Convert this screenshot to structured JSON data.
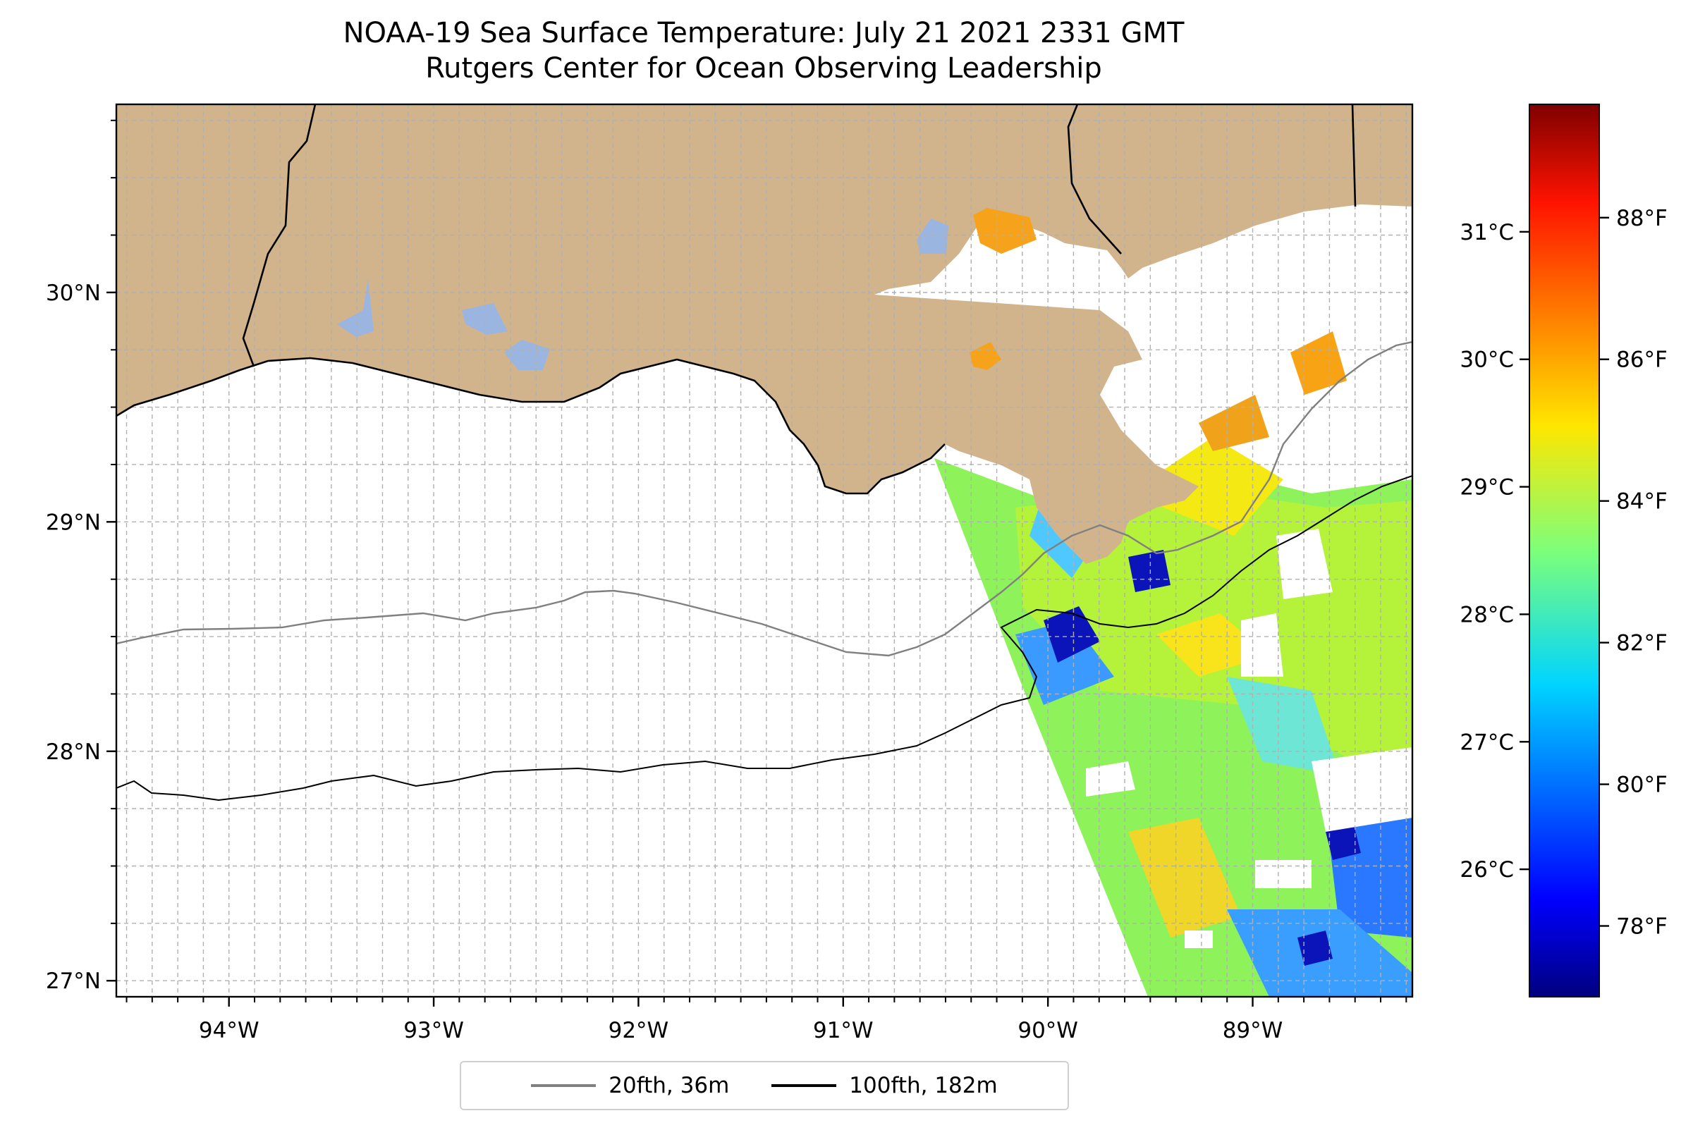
{
  "title": {
    "line1": "NOAA-19 Sea Surface Temperature: July 21 2021 2331 GMT",
    "line2": "Rutgers Center for Ocean Observing Leadership"
  },
  "map": {
    "lon_range": [
      -94.55,
      -88.22
    ],
    "lat_range": [
      26.93,
      30.82
    ],
    "lon_ticks": [
      {
        "value": -94,
        "label": "94°W"
      },
      {
        "value": -93,
        "label": "93°W"
      },
      {
        "value": -92,
        "label": "92°W"
      },
      {
        "value": -91,
        "label": "91°W"
      },
      {
        "value": -90,
        "label": "90°W"
      },
      {
        "value": -89,
        "label": "89°W"
      }
    ],
    "lat_ticks": [
      {
        "value": 30,
        "label": "30°N"
      },
      {
        "value": 29,
        "label": "29°N"
      },
      {
        "value": 28,
        "label": "28°N"
      },
      {
        "value": 27,
        "label": "27°N"
      }
    ],
    "land_color": "#d2b48c",
    "lake_color": "#9ab5e0",
    "gridlines": true
  },
  "colorbar": {
    "colormap": "jet",
    "range_f": [
      77.0,
      89.6
    ],
    "celsius_ticks": [
      {
        "value": 26,
        "label": "26°C"
      },
      {
        "value": 27,
        "label": "27°C"
      },
      {
        "value": 28,
        "label": "28°C"
      },
      {
        "value": 29,
        "label": "29°C"
      },
      {
        "value": 30,
        "label": "30°C"
      },
      {
        "value": 31,
        "label": "31°C"
      }
    ],
    "fahrenheit_ticks": [
      {
        "value": 78,
        "label": "78°F"
      },
      {
        "value": 80,
        "label": "80°F"
      },
      {
        "value": 82,
        "label": "82°F"
      },
      {
        "value": 84,
        "label": "84°F"
      },
      {
        "value": 86,
        "label": "86°F"
      },
      {
        "value": 88,
        "label": "88°F"
      }
    ]
  },
  "legend": {
    "placement": "bottom-center",
    "items": [
      {
        "label": "20fth, 36m",
        "color": "#808080"
      },
      {
        "label": "100fth, 182m",
        "color": "#000000"
      }
    ]
  }
}
